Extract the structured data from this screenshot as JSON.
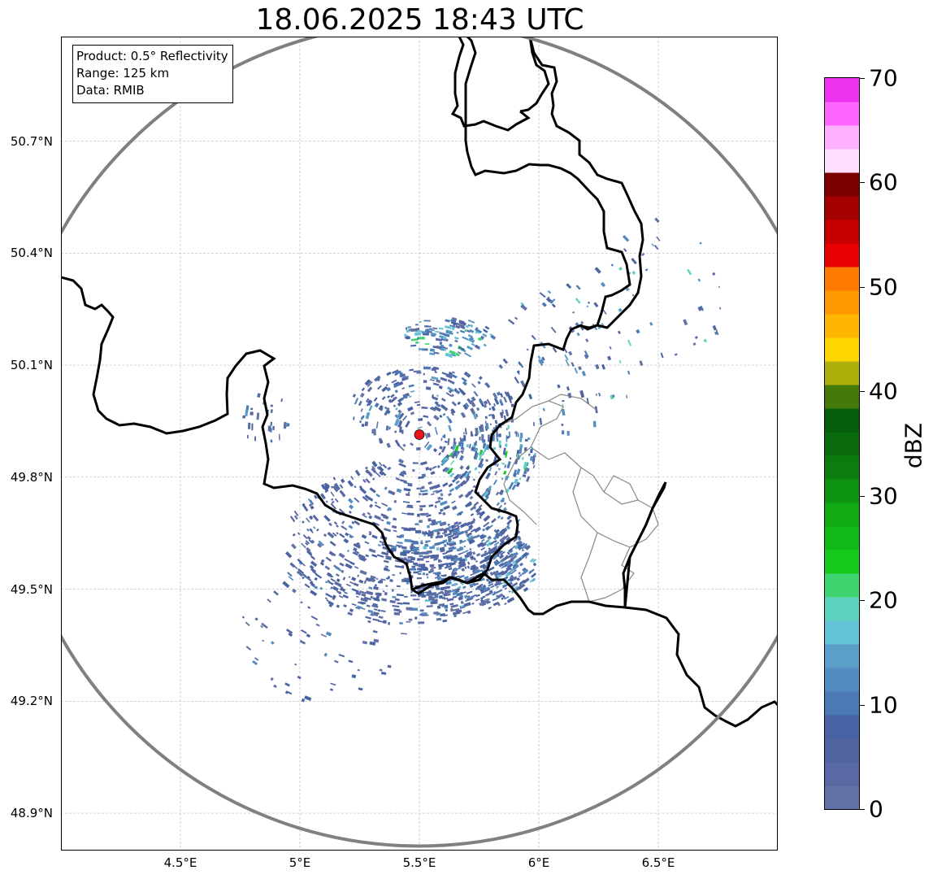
{
  "title": "18.06.2025 18:43 UTC",
  "info": {
    "product": "Product: 0.5° Reflectivity",
    "range": "Range: 125 km",
    "data": "Data: RMIB"
  },
  "map": {
    "lon_range": [
      4.0,
      7.0
    ],
    "lat_range": [
      48.8,
      50.98
    ],
    "radar_site": {
      "lon": 5.5,
      "lat": 49.914
    },
    "range_ring_km": 125,
    "colors": {
      "border": "#000000",
      "admin_border": "#888888",
      "range_ring": "#808080",
      "grid": "#bbbbbb",
      "radar_site": "#e8161b"
    },
    "lat_ticks": [
      {
        "value": 50.7,
        "label": "50.7°N"
      },
      {
        "value": 50.4,
        "label": "50.4°N"
      },
      {
        "value": 50.1,
        "label": "50.1°N"
      },
      {
        "value": 49.8,
        "label": "49.8°N"
      },
      {
        "value": 49.5,
        "label": "49.5°N"
      },
      {
        "value": 49.2,
        "label": "49.2°N"
      },
      {
        "value": 48.9,
        "label": "48.9°N"
      }
    ],
    "lon_ticks": [
      {
        "value": 4.5,
        "label": "4.5°E"
      },
      {
        "value": 5.0,
        "label": "5°E"
      },
      {
        "value": 5.5,
        "label": "5.5°E"
      },
      {
        "value": 6.0,
        "label": "6°E"
      },
      {
        "value": 6.5,
        "label": "6.5°E"
      }
    ],
    "echo_regions": [
      {
        "lon": 5.45,
        "lat": 49.62,
        "rx": 0.5,
        "ry": 0.22,
        "count": 700,
        "level": 4
      },
      {
        "lon": 5.72,
        "lat": 49.56,
        "rx": 0.28,
        "ry": 0.12,
        "count": 420,
        "level": 6
      },
      {
        "lon": 5.62,
        "lat": 50.18,
        "rx": 0.2,
        "ry": 0.05,
        "count": 120,
        "level": 8
      },
      {
        "lon": 5.55,
        "lat": 49.98,
        "rx": 0.35,
        "ry": 0.12,
        "count": 260,
        "level": 5
      },
      {
        "lon": 5.8,
        "lat": 49.85,
        "rx": 0.2,
        "ry": 0.1,
        "count": 160,
        "level": 9
      },
      {
        "lon": 6.12,
        "lat": 50.12,
        "rx": 0.3,
        "ry": 0.2,
        "count": 90,
        "level": 7
      },
      {
        "lon": 5.1,
        "lat": 49.38,
        "rx": 0.35,
        "ry": 0.2,
        "count": 80,
        "level": 4
      },
      {
        "lon": 4.85,
        "lat": 49.95,
        "rx": 0.1,
        "ry": 0.08,
        "count": 25,
        "level": 5
      },
      {
        "lon": 6.5,
        "lat": 50.3,
        "rx": 0.3,
        "ry": 0.2,
        "count": 40,
        "level": 7
      }
    ]
  },
  "colorbar": {
    "unit": "dBZ",
    "min": 0,
    "max": 70,
    "step": 2.5,
    "colors": [
      "#6272a6",
      "#5869a3",
      "#5064a2",
      "#4763a3",
      "#4b79b3",
      "#528cc0",
      "#5b9fc8",
      "#63c2d6",
      "#5dd3c0",
      "#3ed46f",
      "#17c91c",
      "#10b915",
      "#10aa14",
      "#0d9212",
      "#0b7d10",
      "#0a6b0d",
      "#075e0a",
      "#457a0a",
      "#adb00a",
      "#ffd700",
      "#ffb600",
      "#ff9900",
      "#ff7a00",
      "#e60000",
      "#c60000",
      "#a50000",
      "#7c0000",
      "#ffdeff",
      "#ffb1ff",
      "#ff66ff",
      "#ee33ee"
    ],
    "ticks": [
      {
        "value": 0,
        "label": "0"
      },
      {
        "value": 10,
        "label": "10"
      },
      {
        "value": 20,
        "label": "20"
      },
      {
        "value": 30,
        "label": "30"
      },
      {
        "value": 40,
        "label": "40"
      },
      {
        "value": 50,
        "label": "50"
      },
      {
        "value": 60,
        "label": "60"
      },
      {
        "value": 70,
        "label": "70"
      }
    ]
  }
}
